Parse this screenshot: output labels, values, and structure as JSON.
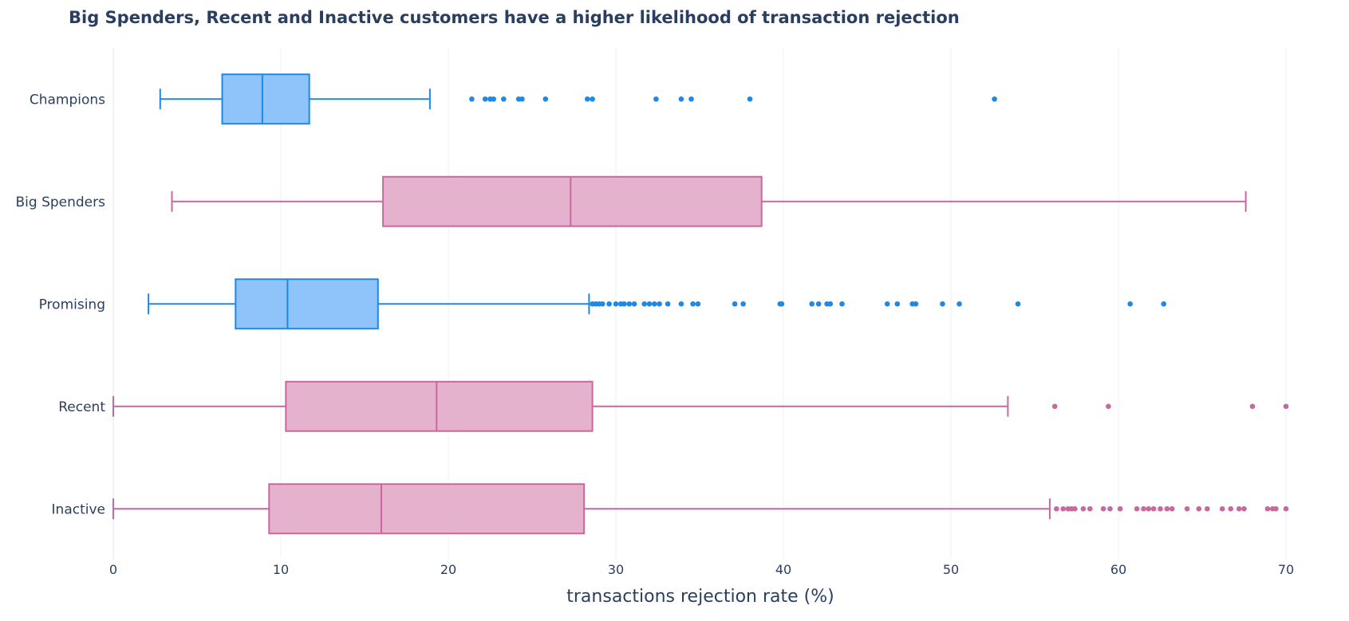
{
  "chart_data": {
    "type": "box",
    "title": "Big Spenders, Recent and Inactive customers have a higher likelihood of transaction rejection",
    "xlabel": "transactions rejection rate (%)",
    "ylabel": "",
    "xlim": [
      0,
      71
    ],
    "x_ticks": [
      "0",
      "10",
      "20",
      "30",
      "40",
      "50",
      "60",
      "70"
    ],
    "grid": true,
    "colors": {
      "Champions": "#1e88e5",
      "Big Spenders": "#c9689e",
      "Promising": "#1e88e5",
      "Recent": "#c9689e",
      "Inactive": "#c9689e"
    },
    "fill_colors": {
      "Champions": "#8fc4fb",
      "Big Spenders": "#e5b2ce",
      "Promising": "#8fc4fb",
      "Recent": "#e5b2ce",
      "Inactive": "#e5b2ce"
    },
    "categories": [
      "Champions",
      "Big Spenders",
      "Promising",
      "Recent",
      "Inactive"
    ],
    "boxes": [
      {
        "category": "Champions",
        "whisker_low": 2.8,
        "q1": 6.5,
        "median": 8.9,
        "q3": 11.7,
        "whisker_high": 18.9,
        "outliers": [
          21.4,
          22.2,
          22.5,
          22.7,
          23.3,
          24.2,
          24.4,
          25.8,
          28.3,
          28.6,
          32.4,
          33.9,
          34.5,
          38.0,
          52.6
        ]
      },
      {
        "category": "Big Spenders",
        "whisker_low": 3.5,
        "q1": 16.1,
        "median": 27.3,
        "q3": 38.7,
        "whisker_high": 67.6,
        "outliers": []
      },
      {
        "category": "Promising",
        "whisker_low": 2.1,
        "q1": 7.3,
        "median": 10.4,
        "q3": 15.8,
        "whisker_high": 28.4,
        "outliers": [
          28.6,
          28.8,
          29.0,
          29.2,
          29.6,
          30.0,
          30.3,
          30.5,
          30.8,
          31.1,
          31.7,
          32.0,
          32.3,
          32.6,
          33.1,
          33.9,
          34.6,
          34.9,
          37.1,
          37.6,
          39.8,
          39.9,
          41.7,
          42.1,
          42.6,
          42.8,
          43.5,
          46.2,
          46.8,
          47.7,
          47.9,
          49.5,
          50.5,
          54.0,
          60.7,
          62.7
        ]
      },
      {
        "category": "Recent",
        "whisker_low": 0,
        "q1": 10.3,
        "median": 19.3,
        "q3": 28.6,
        "whisker_high": 53.4,
        "outliers": [
          56.2,
          59.4,
          68.0,
          70.0
        ]
      },
      {
        "category": "Inactive",
        "whisker_low": 0,
        "q1": 9.3,
        "median": 16.0,
        "q3": 28.1,
        "whisker_high": 55.9,
        "outliers": [
          56.3,
          56.7,
          57.0,
          57.2,
          57.4,
          57.9,
          58.3,
          59.1,
          59.5,
          60.1,
          61.1,
          61.5,
          61.8,
          62.1,
          62.5,
          62.9,
          63.2,
          64.1,
          64.8,
          65.3,
          66.2,
          66.7,
          67.2,
          67.5,
          68.9,
          69.2,
          69.4,
          70.0
        ]
      }
    ]
  }
}
